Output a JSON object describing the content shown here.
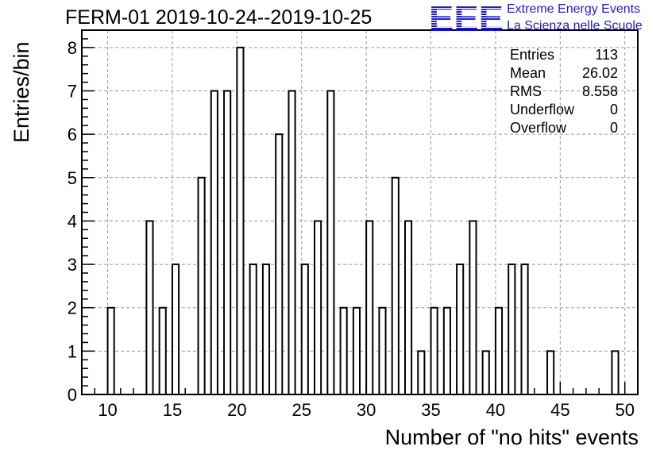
{
  "title": "FERM-01 2019-10-24--2019-10-25",
  "logo": {
    "lettering": "EEE",
    "line1": "Extreme Energy Events",
    "line2": "La Scienza nelle Scuole",
    "color": "#1c1cdc"
  },
  "stats": {
    "entries_label": "Entries",
    "entries_value": "113",
    "mean_label": "Mean",
    "mean_value": "26.02",
    "rms_label": "RMS",
    "rms_value": "8.558",
    "underflow_label": "Underflow",
    "underflow_value": "0",
    "overflow_label": "Overflow",
    "overflow_value": "0"
  },
  "chart_data": {
    "type": "bar",
    "title": "FERM-01 2019-10-24--2019-10-25",
    "xlabel": "Number of \"no hits\" events",
    "ylabel": "Entries/bin",
    "xlim": [
      8,
      51
    ],
    "ylim": [
      0,
      8.4
    ],
    "xticks": [
      10,
      15,
      20,
      25,
      30,
      35,
      40,
      45,
      50
    ],
    "yticks": [
      0,
      1,
      2,
      3,
      4,
      5,
      6,
      7,
      8
    ],
    "grid": true,
    "bin_width": 0.5,
    "bins": [
      {
        "x": 10,
        "value": 2
      },
      {
        "x": 13,
        "value": 4
      },
      {
        "x": 14,
        "value": 2
      },
      {
        "x": 15,
        "value": 3
      },
      {
        "x": 17,
        "value": 5
      },
      {
        "x": 18,
        "value": 7
      },
      {
        "x": 19,
        "value": 7
      },
      {
        "x": 20,
        "value": 8
      },
      {
        "x": 21,
        "value": 3
      },
      {
        "x": 22,
        "value": 3
      },
      {
        "x": 23,
        "value": 6
      },
      {
        "x": 24,
        "value": 7
      },
      {
        "x": 25,
        "value": 3
      },
      {
        "x": 26,
        "value": 4
      },
      {
        "x": 27,
        "value": 7
      },
      {
        "x": 28,
        "value": 2
      },
      {
        "x": 29,
        "value": 2
      },
      {
        "x": 30,
        "value": 4
      },
      {
        "x": 31,
        "value": 2
      },
      {
        "x": 32,
        "value": 5
      },
      {
        "x": 33,
        "value": 4
      },
      {
        "x": 34,
        "value": 1
      },
      {
        "x": 35,
        "value": 2
      },
      {
        "x": 36,
        "value": 2
      },
      {
        "x": 37,
        "value": 3
      },
      {
        "x": 38,
        "value": 4
      },
      {
        "x": 39,
        "value": 1
      },
      {
        "x": 40,
        "value": 2
      },
      {
        "x": 41,
        "value": 3
      },
      {
        "x": 42,
        "value": 3
      },
      {
        "x": 44,
        "value": 1
      },
      {
        "x": 49,
        "value": 1
      }
    ]
  }
}
